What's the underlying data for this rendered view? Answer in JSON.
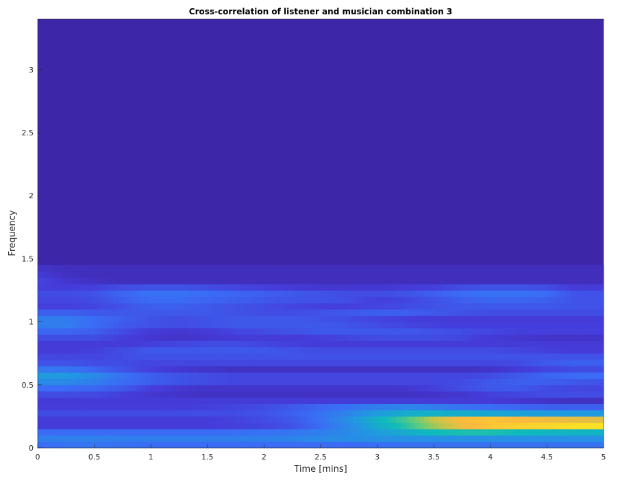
{
  "chart_data": {
    "type": "heatmap",
    "title": "Cross-correlation of listener and musician combination 3",
    "xlabel": "Time [mins]",
    "ylabel": "Frequency",
    "xlim": [
      0,
      5
    ],
    "ylim": [
      0,
      3.4
    ],
    "xticks": [
      "0",
      "0.5",
      "1",
      "1.5",
      "2",
      "2.5",
      "3",
      "3.5",
      "4",
      "4.5",
      "5"
    ],
    "yticks": [
      "0",
      "0.5",
      "1",
      "1.5",
      "2",
      "2.5",
      "3"
    ],
    "colormap": "parula",
    "grid": false,
    "note_values": "intensity normalized 0-1 (no colorbar shown)",
    "x": [
      0,
      0.25,
      0.5,
      0.75,
      1,
      1.25,
      1.5,
      1.75,
      2,
      2.25,
      2.5,
      2.75,
      3,
      3.25,
      3.5,
      3.75,
      4,
      4.25,
      4.5,
      4.75,
      5
    ],
    "y": [
      0.025,
      0.075,
      0.125,
      0.175,
      0.225,
      0.275,
      0.325,
      0.375,
      0.425,
      0.475,
      0.525,
      0.575,
      0.625,
      0.675,
      0.725,
      0.775,
      0.825,
      0.875,
      0.925,
      0.975,
      1.025,
      1.075,
      1.125,
      1.175,
      1.225,
      1.275,
      1.325,
      1.375,
      1.425
    ],
    "z": [
      [
        0.3,
        0.32,
        0.33,
        0.32,
        0.3,
        0.3,
        0.3,
        0.3,
        0.3,
        0.3,
        0.3,
        0.3,
        0.31,
        0.32,
        0.32,
        0.32,
        0.32,
        0.32,
        0.32,
        0.32,
        0.32
      ],
      [
        0.36,
        0.37,
        0.37,
        0.36,
        0.36,
        0.36,
        0.36,
        0.36,
        0.37,
        0.38,
        0.4,
        0.41,
        0.42,
        0.42,
        0.42,
        0.42,
        0.42,
        0.42,
        0.42,
        0.42,
        0.42
      ],
      [
        0.3,
        0.3,
        0.3,
        0.3,
        0.3,
        0.3,
        0.3,
        0.31,
        0.32,
        0.33,
        0.36,
        0.4,
        0.46,
        0.52,
        0.58,
        0.6,
        0.6,
        0.58,
        0.56,
        0.55,
        0.55
      ],
      [
        0.14,
        0.14,
        0.14,
        0.14,
        0.14,
        0.14,
        0.15,
        0.16,
        0.18,
        0.22,
        0.3,
        0.4,
        0.52,
        0.62,
        0.76,
        0.86,
        0.9,
        0.92,
        0.93,
        0.95,
        0.95
      ],
      [
        0.14,
        0.14,
        0.14,
        0.14,
        0.14,
        0.14,
        0.15,
        0.17,
        0.2,
        0.24,
        0.32,
        0.42,
        0.55,
        0.66,
        0.8,
        0.88,
        0.9,
        0.88,
        0.86,
        0.85,
        0.84
      ],
      [
        0.2,
        0.2,
        0.2,
        0.2,
        0.2,
        0.2,
        0.2,
        0.2,
        0.22,
        0.26,
        0.32,
        0.38,
        0.46,
        0.52,
        0.54,
        0.52,
        0.5,
        0.48,
        0.46,
        0.45,
        0.45
      ],
      [
        0.15,
        0.15,
        0.15,
        0.15,
        0.15,
        0.15,
        0.16,
        0.18,
        0.2,
        0.24,
        0.28,
        0.32,
        0.36,
        0.38,
        0.36,
        0.32,
        0.3,
        0.28,
        0.26,
        0.26,
        0.26
      ],
      [
        0.14,
        0.14,
        0.14,
        0.14,
        0.14,
        0.14,
        0.14,
        0.14,
        0.14,
        0.14,
        0.14,
        0.14,
        0.14,
        0.14,
        0.14,
        0.14,
        0.14,
        0.12,
        0.1,
        0.08,
        0.08
      ],
      [
        0.2,
        0.2,
        0.19,
        0.16,
        0.12,
        0.1,
        0.08,
        0.08,
        0.08,
        0.08,
        0.08,
        0.08,
        0.08,
        0.08,
        0.1,
        0.12,
        0.16,
        0.18,
        0.2,
        0.2,
        0.2
      ],
      [
        0.3,
        0.3,
        0.28,
        0.24,
        0.16,
        0.12,
        0.1,
        0.1,
        0.1,
        0.1,
        0.1,
        0.1,
        0.1,
        0.12,
        0.16,
        0.2,
        0.24,
        0.24,
        0.2,
        0.18,
        0.18
      ],
      [
        0.4,
        0.4,
        0.36,
        0.3,
        0.26,
        0.22,
        0.2,
        0.18,
        0.18,
        0.18,
        0.18,
        0.18,
        0.18,
        0.18,
        0.18,
        0.2,
        0.24,
        0.26,
        0.26,
        0.24,
        0.22
      ],
      [
        0.46,
        0.45,
        0.4,
        0.32,
        0.26,
        0.22,
        0.2,
        0.18,
        0.18,
        0.18,
        0.18,
        0.18,
        0.18,
        0.18,
        0.18,
        0.18,
        0.2,
        0.24,
        0.28,
        0.3,
        0.3
      ],
      [
        0.34,
        0.33,
        0.28,
        0.22,
        0.16,
        0.12,
        0.1,
        0.08,
        0.08,
        0.08,
        0.08,
        0.08,
        0.08,
        0.08,
        0.08,
        0.08,
        0.1,
        0.14,
        0.18,
        0.2,
        0.2
      ],
      [
        0.22,
        0.22,
        0.2,
        0.2,
        0.18,
        0.18,
        0.18,
        0.18,
        0.18,
        0.18,
        0.18,
        0.18,
        0.18,
        0.18,
        0.18,
        0.18,
        0.18,
        0.2,
        0.24,
        0.26,
        0.26
      ],
      [
        0.18,
        0.18,
        0.18,
        0.2,
        0.22,
        0.22,
        0.22,
        0.22,
        0.22,
        0.22,
        0.22,
        0.22,
        0.22,
        0.22,
        0.22,
        0.22,
        0.22,
        0.22,
        0.22,
        0.22,
        0.22
      ],
      [
        0.14,
        0.14,
        0.16,
        0.2,
        0.24,
        0.24,
        0.24,
        0.24,
        0.24,
        0.22,
        0.2,
        0.2,
        0.2,
        0.2,
        0.2,
        0.2,
        0.2,
        0.18,
        0.16,
        0.14,
        0.14
      ],
      [
        0.14,
        0.14,
        0.14,
        0.14,
        0.16,
        0.18,
        0.2,
        0.2,
        0.18,
        0.16,
        0.14,
        0.14,
        0.14,
        0.14,
        0.14,
        0.14,
        0.14,
        0.14,
        0.14,
        0.14,
        0.14
      ],
      [
        0.2,
        0.2,
        0.2,
        0.16,
        0.12,
        0.1,
        0.12,
        0.14,
        0.14,
        0.14,
        0.16,
        0.18,
        0.2,
        0.2,
        0.2,
        0.18,
        0.14,
        0.12,
        0.1,
        0.1,
        0.1
      ],
      [
        0.28,
        0.28,
        0.26,
        0.2,
        0.14,
        0.12,
        0.14,
        0.18,
        0.2,
        0.22,
        0.24,
        0.24,
        0.24,
        0.24,
        0.22,
        0.2,
        0.18,
        0.16,
        0.16,
        0.16,
        0.16
      ],
      [
        0.36,
        0.36,
        0.3,
        0.24,
        0.22,
        0.2,
        0.22,
        0.24,
        0.24,
        0.24,
        0.24,
        0.22,
        0.2,
        0.18,
        0.16,
        0.16,
        0.16,
        0.16,
        0.16,
        0.16,
        0.16
      ],
      [
        0.36,
        0.35,
        0.3,
        0.26,
        0.22,
        0.2,
        0.22,
        0.24,
        0.24,
        0.24,
        0.22,
        0.2,
        0.18,
        0.16,
        0.14,
        0.14,
        0.14,
        0.14,
        0.14,
        0.14,
        0.14
      ],
      [
        0.26,
        0.26,
        0.24,
        0.24,
        0.24,
        0.24,
        0.24,
        0.22,
        0.2,
        0.2,
        0.22,
        0.24,
        0.26,
        0.26,
        0.24,
        0.22,
        0.2,
        0.2,
        0.2,
        0.2,
        0.2
      ],
      [
        0.16,
        0.16,
        0.18,
        0.22,
        0.26,
        0.26,
        0.24,
        0.22,
        0.2,
        0.18,
        0.16,
        0.16,
        0.18,
        0.2,
        0.22,
        0.24,
        0.24,
        0.24,
        0.24,
        0.22,
        0.22
      ],
      [
        0.18,
        0.18,
        0.2,
        0.26,
        0.3,
        0.3,
        0.28,
        0.26,
        0.24,
        0.22,
        0.22,
        0.2,
        0.16,
        0.18,
        0.22,
        0.26,
        0.28,
        0.28,
        0.26,
        0.22,
        0.22
      ],
      [
        0.2,
        0.2,
        0.22,
        0.28,
        0.32,
        0.32,
        0.3,
        0.28,
        0.26,
        0.24,
        0.22,
        0.2,
        0.2,
        0.22,
        0.26,
        0.3,
        0.32,
        0.32,
        0.3,
        0.22,
        0.22
      ],
      [
        0.16,
        0.15,
        0.16,
        0.2,
        0.22,
        0.22,
        0.2,
        0.18,
        0.16,
        0.14,
        0.12,
        0.12,
        0.12,
        0.14,
        0.16,
        0.2,
        0.22,
        0.22,
        0.2,
        0.14,
        0.14
      ],
      [
        0.18,
        0.12,
        0.08,
        0.06,
        0.06,
        0.06,
        0.06,
        0.06,
        0.06,
        0.06,
        0.06,
        0.06,
        0.06,
        0.06,
        0.06,
        0.06,
        0.06,
        0.06,
        0.06,
        0.06,
        0.06
      ],
      [
        0.14,
        0.08,
        0.06,
        0.06,
        0.06,
        0.06,
        0.06,
        0.06,
        0.06,
        0.06,
        0.06,
        0.06,
        0.06,
        0.06,
        0.06,
        0.06,
        0.06,
        0.06,
        0.06,
        0.06,
        0.06
      ],
      [
        0.1,
        0.07,
        0.06,
        0.06,
        0.06,
        0.06,
        0.06,
        0.06,
        0.06,
        0.06,
        0.06,
        0.06,
        0.06,
        0.06,
        0.06,
        0.06,
        0.06,
        0.06,
        0.06,
        0.06,
        0.06
      ]
    ],
    "background_value": 0.06
  }
}
